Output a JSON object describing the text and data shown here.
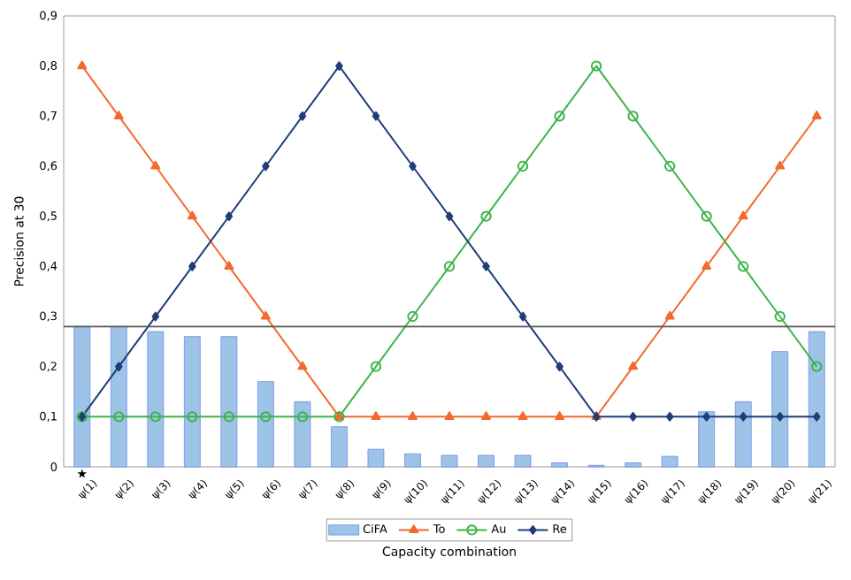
{
  "chart_data": {
    "type": "bar",
    "xlabel": "Capacity combination",
    "ylabel": "Precision at 30",
    "categories": [
      "ψ(1)",
      "ψ(2)",
      "ψ(3)",
      "ψ(4)",
      "ψ(5)",
      "ψ(6)",
      "ψ(7)",
      "ψ(8)",
      "ψ(9)",
      "ψ(10)",
      "ψ(11)",
      "ψ(12)",
      "ψ(13)",
      "ψ(14)",
      "ψ(15)",
      "ψ(16)",
      "ψ(17)",
      "ψ(18)",
      "ψ(19)",
      "ψ(20)",
      "ψ(21)"
    ],
    "series": [
      {
        "name": "CiFA",
        "color": "#9dc3e6",
        "values": [
          0.28,
          0.28,
          0.27,
          0.26,
          0.26,
          0.17,
          0.13,
          0.08,
          0.035,
          0.026,
          0.023,
          0.023,
          0.023,
          0.008,
          0.003,
          0.008,
          0.021,
          0.11,
          0.13,
          0.23,
          0.27
        ]
      },
      {
        "name": "To",
        "type": "line",
        "marker": "triangle",
        "color": "#f26a2e",
        "values": [
          0.8,
          0.7,
          0.6,
          0.5,
          0.4,
          0.3,
          0.2,
          0.1,
          0.1,
          0.1,
          0.1,
          0.1,
          0.1,
          0.1,
          0.1,
          0.2,
          0.3,
          0.4,
          0.5,
          0.6,
          0.7
        ]
      },
      {
        "name": "Au",
        "type": "line",
        "marker": "circle",
        "color": "#3cb44b",
        "values": [
          0.1,
          0.1,
          0.1,
          0.1,
          0.1,
          0.1,
          0.1,
          0.1,
          0.2,
          0.3,
          0.4,
          0.5,
          0.6,
          0.7,
          0.8,
          0.7,
          0.6,
          0.5,
          0.4,
          0.3,
          0.2
        ]
      },
      {
        "name": "Re",
        "type": "line",
        "marker": "diamond",
        "color": "#1f3d7a",
        "values": [
          0.1,
          0.2,
          0.3,
          0.4,
          0.5,
          0.6,
          0.7,
          0.8,
          0.7,
          0.6,
          0.5,
          0.4,
          0.3,
          0.2,
          0.1,
          0.1,
          0.1,
          0.1,
          0.1,
          0.1,
          0.1
        ]
      }
    ],
    "ylim": [
      0,
      0.9
    ],
    "yticks": [
      0,
      {
        "value": 0.1,
        "label": "0,1"
      },
      {
        "value": 0.2,
        "label": "0,2"
      },
      {
        "value": 0.3,
        "label": "0,3"
      },
      {
        "value": 0.4,
        "label": "0,4"
      },
      {
        "value": 0.5,
        "label": "0,5"
      },
      {
        "value": 0.6,
        "label": "0,6"
      },
      {
        "value": 0.7,
        "label": "0,7"
      },
      {
        "value": 0.8,
        "label": "0,8"
      },
      {
        "value": 0.9,
        "label": "0,9"
      }
    ],
    "ref_lines": [
      {
        "axis": "y",
        "value": 0.28,
        "color": "#555555"
      }
    ],
    "annotations": [
      {
        "text": "★",
        "x": "ψ(1)"
      }
    ],
    "grid": false,
    "legend": "bottom"
  }
}
